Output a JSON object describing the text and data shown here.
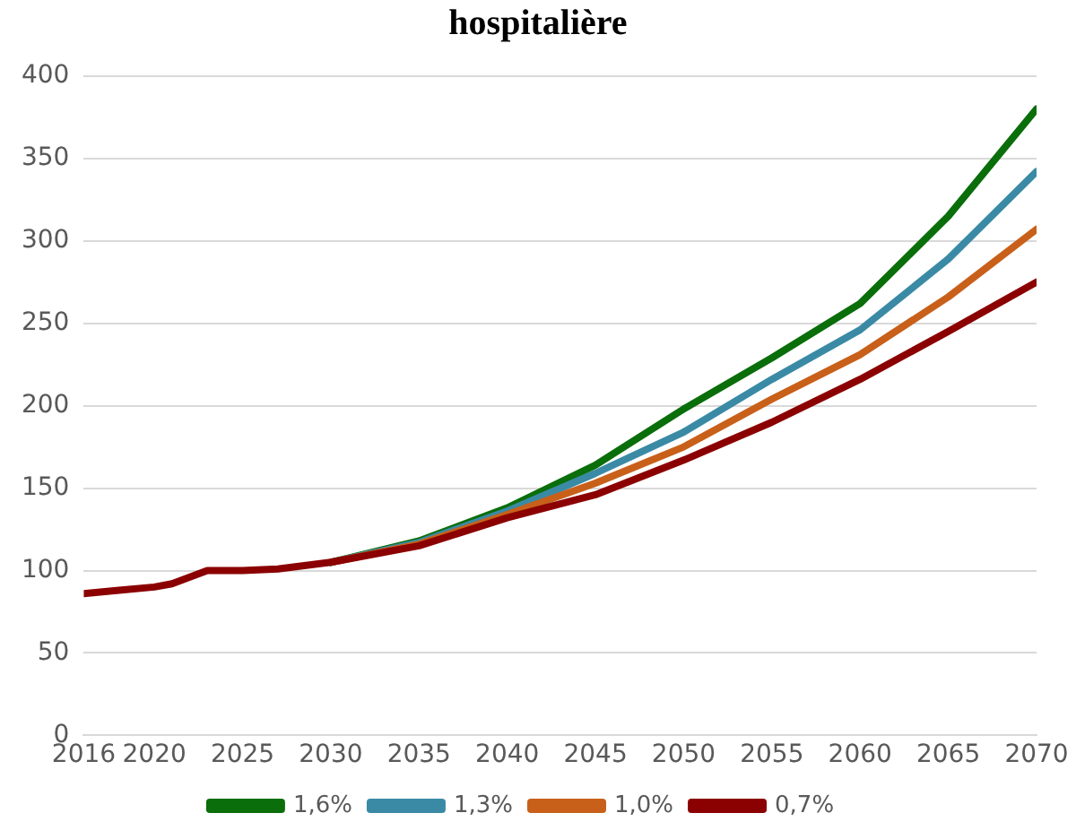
{
  "chart_data": {
    "type": "line",
    "title": "hospitalière",
    "x": [
      2016,
      2018,
      2020,
      2021,
      2023,
      2025,
      2027,
      2030,
      2035,
      2040,
      2045,
      2050,
      2055,
      2060,
      2065,
      2070
    ],
    "xlim": [
      2016,
      2070
    ],
    "xticks": [
      2016,
      2020,
      2025,
      2030,
      2035,
      2040,
      2045,
      2050,
      2055,
      2060,
      2065,
      2070
    ],
    "ylim": [
      0,
      400
    ],
    "yticks": [
      0,
      50,
      100,
      150,
      200,
      250,
      300,
      350,
      400
    ],
    "grid": "y",
    "legend": "bottom",
    "marker": "none",
    "line_style": "solid",
    "series": [
      {
        "name": "1,6%",
        "color": "#0a6e0a",
        "values": [
          null,
          null,
          null,
          null,
          null,
          null,
          null,
          105,
          118,
          138,
          164,
          198,
          229,
          262,
          315,
          380
        ]
      },
      {
        "name": "1,3%",
        "color": "#3a8aa5",
        "values": [
          null,
          null,
          null,
          null,
          null,
          null,
          null,
          105,
          117,
          136,
          159,
          184,
          216,
          246,
          289,
          342
        ]
      },
      {
        "name": "1,0%",
        "color": "#c8601a",
        "values": [
          null,
          null,
          null,
          null,
          null,
          null,
          null,
          105,
          116,
          134,
          153,
          175,
          204,
          231,
          266,
          307
        ]
      },
      {
        "name": "0,7%",
        "color": "#8b0000",
        "values": [
          86,
          88,
          90,
          92,
          100,
          100,
          101,
          105,
          115,
          132,
          146,
          167,
          190,
          216,
          245,
          275
        ]
      }
    ]
  }
}
